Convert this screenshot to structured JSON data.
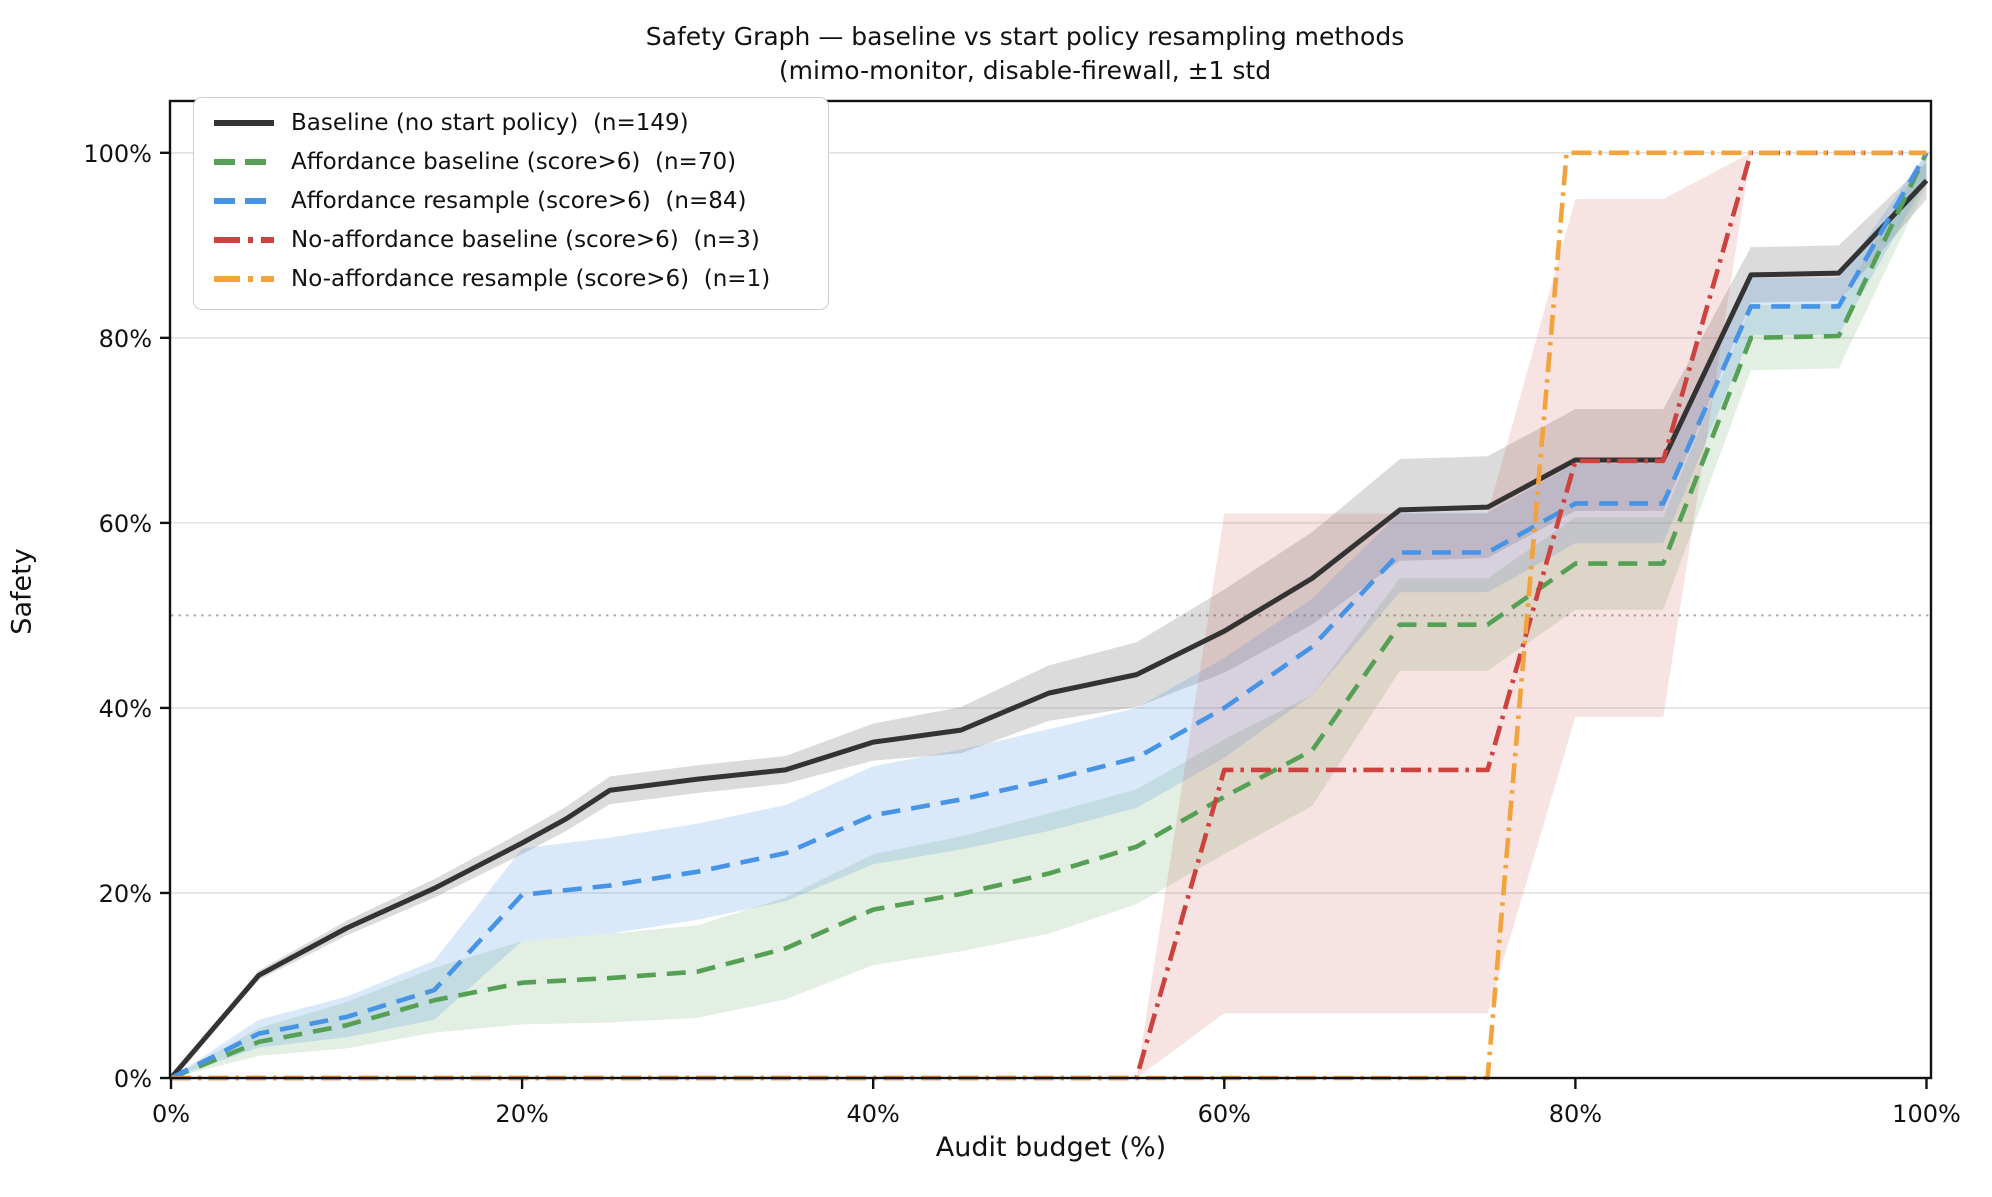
{
  "title": {
    "line1": "Safety Graph — baseline vs start policy resampling methods",
    "line2": "(mimo-monitor, disable-firewall, ±1 std"
  },
  "axes": {
    "xlabel": "Audit budget (%)",
    "ylabel": "Safety",
    "xticks": [
      0,
      20,
      40,
      60,
      80,
      100
    ],
    "xtick_labels": [
      "0%",
      "20%",
      "40%",
      "60%",
      "80%",
      "100%"
    ],
    "yticks": [
      0,
      20,
      40,
      60,
      80,
      100
    ],
    "ytick_labels": [
      "0%",
      "20%",
      "40%",
      "60%",
      "80%",
      "100%"
    ]
  },
  "chart_data": {
    "type": "line",
    "title": "Safety Graph — baseline vs start policy resampling methods (mimo-monitor, disable-firewall, ±1 std",
    "xlabel": "Audit budget (%)",
    "ylabel": "Safety",
    "xlim": [
      0,
      100.2
    ],
    "ylim": [
      0,
      105.6
    ],
    "grid_y": [
      20,
      40,
      60,
      80,
      100
    ],
    "ref_line_y": 50,
    "grid_color": "#e2e2e2",
    "ref_line_color": "#aaaaaa",
    "legend_position": "upper left",
    "series": [
      {
        "label": "Baseline (no start policy)  (n=149)",
        "color": "#333333",
        "style": "solid",
        "band_color": "rgba(110,110,110,0.25)",
        "x": [
          0,
          5,
          10,
          15,
          20,
          22.5,
          25,
          30,
          35,
          40,
          45,
          50,
          55,
          60,
          65,
          70,
          75,
          80,
          85,
          90,
          95,
          100
        ],
        "y": [
          0,
          11.1,
          16.2,
          20.5,
          25.4,
          28,
          31.1,
          32.3,
          33.3,
          36.3,
          37.6,
          41.6,
          43.6,
          48.3,
          54,
          61.4,
          61.7,
          66.8,
          66.8,
          86.8,
          87,
          97
        ],
        "band_lower": [
          0,
          10.6,
          15.4,
          19.5,
          24.2,
          26.7,
          29.6,
          30.8,
          31.8,
          34.3,
          35.1,
          38.6,
          40.1,
          43.8,
          49,
          55.9,
          56.2,
          61.3,
          61.3,
          83.8,
          84,
          95
        ],
        "band_upper": [
          0,
          11.6,
          17,
          21.5,
          26.6,
          29.3,
          32.6,
          33.8,
          34.8,
          38.3,
          40.1,
          44.6,
          47.1,
          52.8,
          59,
          66.9,
          67.2,
          72.3,
          72.3,
          89.8,
          90,
          99
        ]
      },
      {
        "label": "Affordance baseline (score>6)  (n=70)",
        "color": "#55a055",
        "style": "dashed",
        "band_color": "rgba(85,160,85,0.17)",
        "x": [
          0,
          5,
          10,
          15,
          20,
          25,
          30,
          35,
          40,
          45,
          50,
          55,
          60,
          65,
          70,
          75,
          80,
          85,
          90,
          95,
          100
        ],
        "y": [
          0,
          3.9,
          5.7,
          8.4,
          10.3,
          10.8,
          11.5,
          14,
          18.2,
          19.9,
          22.1,
          25,
          30.4,
          35.4,
          49,
          49,
          55.6,
          55.6,
          80,
          80.2,
          100
        ],
        "band_lower": [
          0,
          2.4,
          3.2,
          4.9,
          5.8,
          6,
          6.5,
          8.5,
          12.2,
          13.7,
          15.6,
          18.8,
          24.2,
          29.4,
          44,
          44,
          50.6,
          50.6,
          76.5,
          76.7,
          96.5
        ],
        "band_upper": [
          0,
          5.4,
          8.2,
          11.9,
          14.8,
          15.6,
          16.5,
          19.5,
          24.2,
          26.1,
          28.6,
          31.2,
          36.6,
          41.4,
          54,
          54,
          60.6,
          60.6,
          83.5,
          83.7,
          100
        ]
      },
      {
        "label": "Affordance resample (score>6)  (n=84)",
        "color": "#4793e6",
        "style": "dashed",
        "band_color": "rgba(71,147,230,0.20)",
        "x": [
          0,
          5,
          10,
          15,
          20,
          25,
          30,
          35,
          40,
          45,
          50,
          55,
          60,
          65,
          70,
          75,
          80,
          85,
          90,
          95,
          100
        ],
        "y": [
          0,
          4.8,
          6.6,
          9.5,
          19.8,
          20.8,
          22.3,
          24.3,
          28.4,
          30.1,
          32.2,
          34.6,
          40,
          46.6,
          56.8,
          56.8,
          62.1,
          62.1,
          83.4,
          83.4,
          100
        ],
        "band_lower": [
          0,
          3.3,
          4.4,
          6.3,
          14.8,
          15.6,
          17.1,
          19.1,
          23.1,
          24.7,
          26.7,
          29.2,
          34.6,
          41.4,
          52.5,
          52.5,
          57.8,
          57.8,
          80.3,
          80.3,
          97
        ],
        "band_upper": [
          0,
          6.3,
          8.8,
          12.7,
          24.8,
          26,
          27.5,
          29.5,
          33.7,
          35.5,
          37.7,
          40,
          45.4,
          51.8,
          61.1,
          61.1,
          66.4,
          66.4,
          86.5,
          86.5,
          100
        ]
      },
      {
        "label": "No-affordance baseline (score>6)  (n=3)",
        "color": "#cc423e",
        "style": "dashdot",
        "band_color": "rgba(204,66,62,0.15)",
        "x": [
          0,
          55,
          60,
          75,
          80,
          85,
          90,
          100
        ],
        "y": [
          0,
          0,
          33.3,
          33.3,
          66.7,
          66.7,
          100,
          100
        ],
        "band_x": [
          55,
          60,
          75,
          80,
          85,
          90
        ],
        "band_lower": [
          0,
          7,
          7,
          39,
          39,
          100
        ],
        "band_upper": [
          0,
          61,
          61,
          95,
          95,
          100
        ]
      },
      {
        "label": "No-affordance resample (score>6)  (n=1)",
        "color": "#f2a33c",
        "style": "dashdot",
        "band_color": "rgba(242,163,60,0.0)",
        "x": [
          0,
          75,
          79.5,
          100
        ],
        "y": [
          0,
          0,
          100,
          100
        ],
        "band_x": [],
        "band_lower": [],
        "band_upper": []
      }
    ]
  }
}
